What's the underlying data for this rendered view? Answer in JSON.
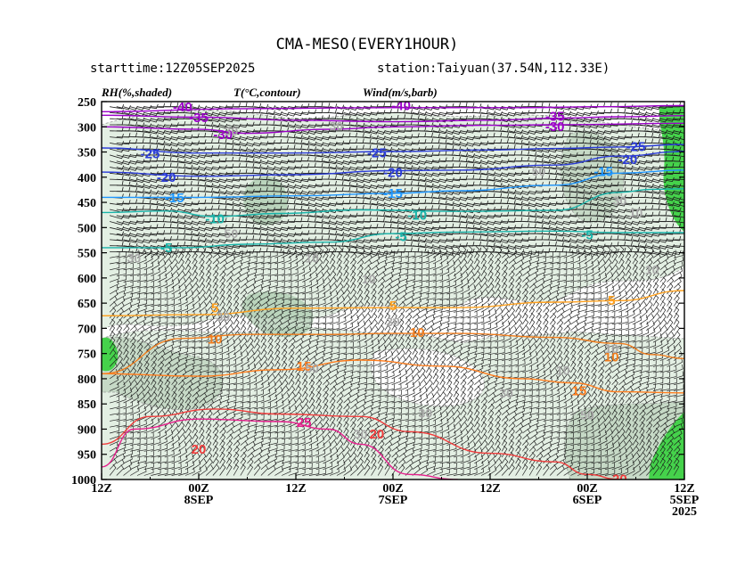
{
  "chart_data": {
    "type": "contour",
    "title": "CMA-MESO(EVERY1HOUR)",
    "subtitle_left": "starttime:12Z05SEP2025",
    "subtitle_right": "station:Taiyuan(37.54N,112.33E)",
    "legend": [
      {
        "key": "rh",
        "label": "RH(%,shaded)"
      },
      {
        "key": "t",
        "label": "T(°C,contour)"
      },
      {
        "key": "wind",
        "label": "Wind(m/s,barb)"
      }
    ],
    "y_axis": {
      "label": "",
      "ticks": [
        250,
        300,
        350,
        400,
        450,
        500,
        550,
        600,
        650,
        700,
        750,
        800,
        850,
        900,
        950,
        1000
      ],
      "range": [
        250,
        1000
      ]
    },
    "x_axis": {
      "direction": "time decreases left to right",
      "range_hours": [
        72,
        0
      ],
      "ticks": [
        {
          "hours": 72,
          "l1": "12Z",
          "l2": "",
          "l3": ""
        },
        {
          "hours": 60,
          "l1": "00Z",
          "l2": "8SEP",
          "l3": ""
        },
        {
          "hours": 48,
          "l1": "12Z",
          "l2": "",
          "l3": ""
        },
        {
          "hours": 36,
          "l1": "00Z",
          "l2": "7SEP",
          "l3": ""
        },
        {
          "hours": 24,
          "l1": "12Z",
          "l2": "",
          "l3": ""
        },
        {
          "hours": 12,
          "l1": "00Z",
          "l2": "6SEP",
          "l3": ""
        },
        {
          "hours": 0,
          "l1": "12Z",
          "l2": "5SEP",
          "l3": "2025"
        }
      ]
    },
    "temperature_contours": [
      {
        "value": -40,
        "label": "-40",
        "color": "#9b00c8",
        "points": [
          [
            72,
            270
          ],
          [
            54,
            264
          ],
          [
            36,
            262
          ],
          [
            20,
            262
          ],
          [
            10,
            260
          ],
          [
            0,
            258
          ]
        ],
        "labels_at": [
          [
            62,
            259
          ],
          [
            35,
            256
          ]
        ]
      },
      {
        "value": -35,
        "label": "-35",
        "color": "#9b00c8",
        "points": [
          [
            72,
            277
          ],
          [
            60,
            281
          ],
          [
            48,
            287
          ],
          [
            36,
            290
          ],
          [
            24,
            287
          ],
          [
            16,
            283
          ],
          [
            8,
            280
          ],
          [
            0,
            278
          ]
        ],
        "labels_at": [
          [
            60,
            280
          ],
          [
            16,
            277
          ]
        ]
      },
      {
        "value": -30,
        "label": "-30",
        "color": "#9b00c8",
        "points": [
          [
            72,
            300
          ],
          [
            60,
            305
          ],
          [
            54,
            313
          ],
          [
            44,
            305
          ],
          [
            36,
            300
          ],
          [
            24,
            297
          ],
          [
            16,
            296
          ],
          [
            0,
            293
          ]
        ],
        "labels_at": [
          [
            57,
            314
          ],
          [
            16,
            298
          ]
        ]
      },
      {
        "value": -25,
        "label": "-25",
        "color": "#2b3cd8",
        "points": [
          [
            72,
            342
          ],
          [
            60,
            352
          ],
          [
            48,
            352
          ],
          [
            36,
            349
          ],
          [
            24,
            346
          ],
          [
            16,
            343
          ],
          [
            8,
            340
          ],
          [
            0,
            335
          ]
        ],
        "labels_at": [
          [
            66,
            352
          ],
          [
            38,
            350
          ],
          [
            6,
            338
          ]
        ]
      },
      {
        "value": -20,
        "label": "-20",
        "color": "#2b3cd8",
        "points": [
          [
            72,
            390
          ],
          [
            60,
            398
          ],
          [
            48,
            395
          ],
          [
            36,
            387
          ],
          [
            28,
            386
          ],
          [
            16,
            376
          ],
          [
            8,
            358
          ],
          [
            0,
            349
          ]
        ],
        "labels_at": [
          [
            64,
            399
          ],
          [
            36,
            389
          ],
          [
            7,
            363
          ]
        ]
      },
      {
        "value": -15,
        "label": "-15",
        "color": "#1e96ff",
        "points": [
          [
            72,
            440
          ],
          [
            60,
            440
          ],
          [
            48,
            437
          ],
          [
            36,
            432
          ],
          [
            28,
            427
          ],
          [
            16,
            416
          ],
          [
            8,
            392
          ],
          [
            0,
            386
          ]
        ],
        "labels_at": [
          [
            63,
            439
          ],
          [
            36,
            430
          ],
          [
            10,
            387
          ]
        ]
      },
      {
        "value": -10,
        "label": "-10",
        "color": "#19b4aa",
        "points": [
          [
            72,
            470
          ],
          [
            64,
            467
          ],
          [
            58,
            478
          ],
          [
            50,
            472
          ],
          [
            40,
            465
          ],
          [
            28,
            468
          ],
          [
            16,
            466
          ],
          [
            8,
            430
          ],
          [
            4,
            424
          ],
          [
            0,
            423
          ]
        ],
        "labels_at": [
          [
            58,
            481
          ],
          [
            33,
            474
          ]
        ]
      },
      {
        "value": -5,
        "label": "-5",
        "color": "#19b4aa",
        "points": [
          [
            72,
            540
          ],
          [
            62,
            540
          ],
          [
            54,
            533
          ],
          [
            44,
            529
          ],
          [
            36,
            512
          ],
          [
            28,
            509
          ],
          [
            16,
            507
          ],
          [
            8,
            510
          ],
          [
            0,
            510
          ]
        ],
        "labels_at": [
          [
            64,
            538
          ],
          [
            35,
            516
          ],
          [
            12,
            513
          ]
        ]
      },
      {
        "value": 5,
        "label": "5",
        "color": "#ffa01e",
        "points": [
          [
            72,
            675
          ],
          [
            60,
            673
          ],
          [
            48,
            660
          ],
          [
            36,
            659
          ],
          [
            28,
            659
          ],
          [
            16,
            648
          ],
          [
            8,
            645
          ],
          [
            0,
            625
          ]
        ],
        "labels_at": [
          [
            58,
            658
          ],
          [
            36,
            653
          ],
          [
            9,
            643
          ]
        ]
      },
      {
        "value": 10,
        "label": "10",
        "color": "#f07d1e",
        "points": [
          [
            72,
            790
          ],
          [
            62,
            720
          ],
          [
            54,
            712
          ],
          [
            44,
            712
          ],
          [
            36,
            710
          ],
          [
            28,
            710
          ],
          [
            16,
            718
          ],
          [
            8,
            730
          ],
          [
            4,
            752
          ],
          [
            0,
            760
          ]
        ],
        "labels_at": [
          [
            58,
            720
          ],
          [
            33,
            706
          ],
          [
            9,
            755
          ]
        ]
      },
      {
        "value": 15,
        "label": "15",
        "color": "#ff7d1e",
        "points": [
          [
            72,
            790
          ],
          [
            60,
            795
          ],
          [
            50,
            782
          ],
          [
            40,
            763
          ],
          [
            30,
            775
          ],
          [
            20,
            800
          ],
          [
            14,
            808
          ],
          [
            8,
            826
          ],
          [
            0,
            828
          ]
        ],
        "labels_at": [
          [
            47,
            774
          ],
          [
            13,
            822
          ]
        ]
      },
      {
        "value": 20,
        "label": "20",
        "color": "#f03c3c",
        "points": [
          [
            72,
            930
          ],
          [
            66,
            875
          ],
          [
            58,
            860
          ],
          [
            50,
            870
          ],
          [
            40,
            875
          ],
          [
            34,
            905
          ],
          [
            24,
            948
          ],
          [
            16,
            965
          ],
          [
            12,
            990
          ],
          [
            8,
            1000
          ]
        ],
        "labels_at": [
          [
            60,
            938
          ],
          [
            38,
            908
          ],
          [
            8,
            997
          ]
        ]
      },
      {
        "value": 25,
        "label": "25",
        "color": "#e61e8c",
        "points": [
          [
            72,
            975
          ],
          [
            68,
            900
          ],
          [
            60,
            880
          ],
          [
            50,
            885
          ],
          [
            44,
            900
          ],
          [
            40,
            930
          ],
          [
            34,
            990
          ],
          [
            28,
            1000
          ]
        ],
        "labels_at": [
          [
            47,
            885
          ]
        ]
      }
    ],
    "rh_label_values": [
      {
        "label": "30",
        "at": [
          56,
          308
        ]
      },
      {
        "label": "30",
        "at": [
          43,
          299
        ]
      },
      {
        "label": "30",
        "at": [
          8,
          446
        ]
      },
      {
        "label": "10",
        "at": [
          6,
          470
        ]
      },
      {
        "label": "30",
        "at": [
          68,
          560
        ]
      },
      {
        "label": "50",
        "at": [
          56,
          512
        ]
      },
      {
        "label": "10",
        "at": [
          46,
          560
        ]
      },
      {
        "label": "10",
        "at": [
          39,
          602
        ]
      },
      {
        "label": "10",
        "at": [
          4,
          583
        ]
      },
      {
        "label": "30",
        "at": [
          57,
          676
        ]
      },
      {
        "label": "50",
        "at": [
          46,
          779
        ]
      },
      {
        "label": "30",
        "at": [
          36,
          687
        ]
      },
      {
        "label": "10",
        "at": [
          9,
          740
        ]
      },
      {
        "label": "10",
        "at": [
          15,
          783
        ]
      },
      {
        "label": "30",
        "at": [
          22,
          828
        ]
      },
      {
        "label": "30",
        "at": [
          32,
          868
        ]
      },
      {
        "label": "50",
        "at": [
          12,
          872
        ]
      },
      {
        "label": "30",
        "at": [
          40,
          910
        ]
      },
      {
        "label": "50",
        "at": [
          18,
          388
        ]
      }
    ]
  },
  "colors": {
    "rh_light": "#e3efe3",
    "rh_mid": "#c6d9c6",
    "rh_dark": "#9fc2a2",
    "rh_saturated": "#45d24b",
    "rh_label": "#a8a8a8",
    "barb": "#1a1a1a",
    "axis": "#000000"
  }
}
